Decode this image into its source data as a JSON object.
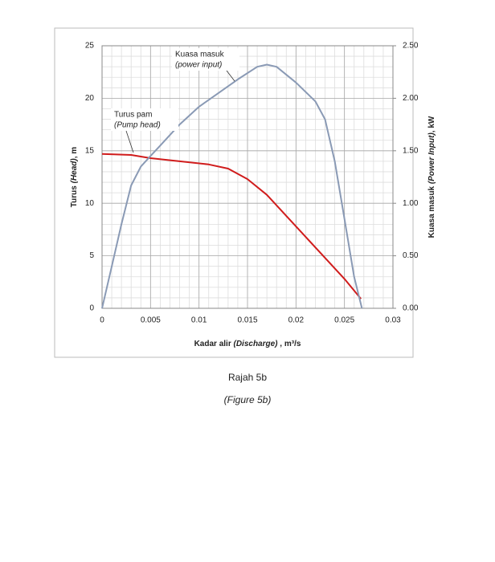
{
  "chart_data": {
    "type": "line",
    "x_label": [
      "Kadar alir ",
      "(Discharge)",
      " , m³/s"
    ],
    "y_label": [
      "Turus ",
      "(Head)",
      ", m"
    ],
    "y2_label": [
      "Kuasa masuk ",
      "(Power Input)",
      ", kW"
    ],
    "xlim": [
      0,
      0.03
    ],
    "xticks": [
      0,
      0.005,
      0.01,
      0.015,
      0.02,
      0.025,
      0.03
    ],
    "ylim": [
      0,
      25
    ],
    "yticks": [
      0,
      5,
      10,
      15,
      20,
      25
    ],
    "y2lim": [
      0,
      2.5
    ],
    "y2ticks": [
      {
        "value": 0,
        "label": "0.00"
      },
      {
        "value": 0.5,
        "label": "0.50"
      },
      {
        "value": 1,
        "label": "1.00"
      },
      {
        "value": 1.5,
        "label": "1.50"
      },
      {
        "value": 2,
        "label": "2.00"
      },
      {
        "value": 2.5,
        "label": "2.50"
      }
    ],
    "grid": true,
    "series": [
      {
        "name_lines": [
          "Turus pam",
          "(Pump head)"
        ],
        "color": "#d01c1c",
        "x": [
          0,
          0.003,
          0.005,
          0.008,
          0.011,
          0.013,
          0.015,
          0.017,
          0.019,
          0.021,
          0.023,
          0.025,
          0.0267
        ],
        "values": [
          14.7,
          14.6,
          14.3,
          14.0,
          13.7,
          13.3,
          12.3,
          10.8,
          8.8,
          6.8,
          4.8,
          2.8,
          0.9
        ]
      },
      {
        "name_lines": [
          "Kuasa masuk",
          "(power input)"
        ],
        "color": "#8a9ab5",
        "axis": "y2",
        "x": [
          0,
          0.001,
          0.002,
          0.003,
          0.004,
          0.005,
          0.006,
          0.008,
          0.01,
          0.012,
          0.014,
          0.016,
          0.017,
          0.018,
          0.02,
          0.022,
          0.023,
          0.024,
          0.025,
          0.026,
          0.0268
        ],
        "values": [
          0,
          0.4,
          0.8,
          1.17,
          1.35,
          1.45,
          1.55,
          1.75,
          1.92,
          2.05,
          2.18,
          2.3,
          2.32,
          2.3,
          2.15,
          1.97,
          1.8,
          1.4,
          0.85,
          0.3,
          0
        ]
      }
    ],
    "caption": "Rajah 5b",
    "caption_en": "(Figure 5b)"
  }
}
